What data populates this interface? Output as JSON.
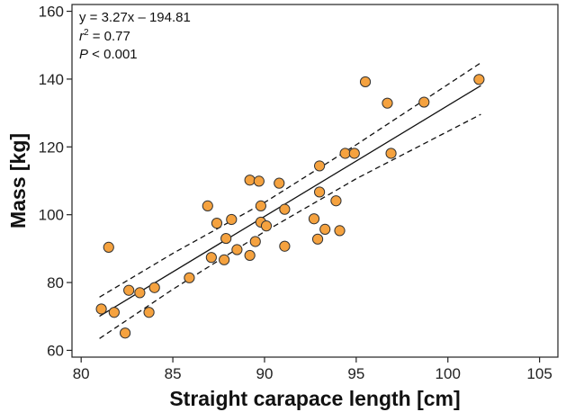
{
  "chart_data": {
    "type": "scatter",
    "xlabel": "Straight carapace length [cm]",
    "ylabel": "Mass [kg]",
    "xlim": [
      79.5,
      106
    ],
    "ylim": [
      58,
      162
    ],
    "xticks": [
      80,
      85,
      90,
      95,
      100,
      105
    ],
    "yticks": [
      60,
      80,
      100,
      120,
      140,
      160
    ],
    "annotations": {
      "equation": "y = 3.27x – 194.81",
      "r2_symbol": "r",
      "r2_sup": "2",
      "r2_value": " = 0.77",
      "p_symbol": "P",
      "p_value": " < 0.001"
    },
    "regression": {
      "slope": 3.27,
      "intercept": -194.81,
      "x_range": [
        81.0,
        101.8
      ]
    },
    "confidence_band": {
      "upper": [
        [
          81.0,
          75.7
        ],
        [
          85.0,
          88.6
        ],
        [
          90.0,
          103.6
        ],
        [
          95.0,
          120.6
        ],
        [
          101.8,
          144.8
        ]
      ],
      "lower": [
        [
          81.0,
          63.5
        ],
        [
          85.0,
          78.0
        ],
        [
          90.0,
          95.0
        ],
        [
          95.0,
          110.6
        ],
        [
          101.8,
          129.6
        ]
      ]
    },
    "points": [
      [
        81.1,
        72.2
      ],
      [
        81.5,
        90.4
      ],
      [
        81.8,
        71.2
      ],
      [
        82.4,
        65.1
      ],
      [
        82.6,
        77.7
      ],
      [
        83.2,
        77.0
      ],
      [
        83.7,
        71.2
      ],
      [
        84.0,
        78.5
      ],
      [
        85.9,
        81.4
      ],
      [
        86.9,
        102.6
      ],
      [
        87.1,
        87.4
      ],
      [
        87.4,
        97.5
      ],
      [
        87.8,
        86.7
      ],
      [
        87.9,
        93.0
      ],
      [
        88.2,
        98.6
      ],
      [
        88.5,
        89.7
      ],
      [
        89.2,
        88.0
      ],
      [
        89.2,
        110.2
      ],
      [
        89.5,
        92.1
      ],
      [
        89.7,
        109.9
      ],
      [
        89.8,
        102.6
      ],
      [
        89.8,
        97.8
      ],
      [
        90.1,
        96.7
      ],
      [
        90.8,
        109.3
      ],
      [
        91.1,
        90.7
      ],
      [
        91.1,
        101.6
      ],
      [
        92.7,
        98.8
      ],
      [
        92.9,
        92.8
      ],
      [
        93.0,
        114.4
      ],
      [
        93.0,
        106.7
      ],
      [
        93.3,
        95.7
      ],
      [
        93.9,
        104.1
      ],
      [
        94.1,
        95.3
      ],
      [
        94.4,
        118.1
      ],
      [
        94.9,
        118.1
      ],
      [
        95.5,
        139.2
      ],
      [
        96.7,
        132.9
      ],
      [
        96.9,
        118.1
      ],
      [
        98.7,
        133.2
      ],
      [
        101.7,
        139.9
      ]
    ],
    "colors": {
      "point_fill": "#F5A23F",
      "point_stroke": "#333333",
      "line": "#111111"
    }
  }
}
